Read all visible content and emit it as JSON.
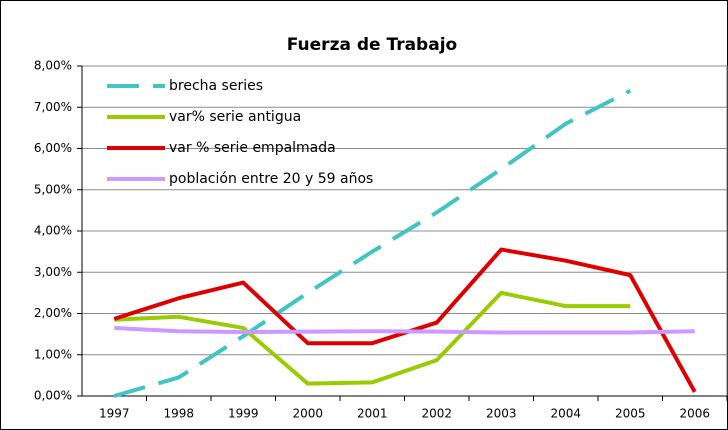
{
  "chart_data": {
    "type": "line",
    "title": "Fuerza de Trabajo",
    "categories": [
      "1997",
      "1998",
      "1999",
      "2000",
      "2001",
      "2002",
      "2003",
      "2004",
      "2005",
      "2006"
    ],
    "series": [
      {
        "name": "brecha series",
        "color": "#40c4c4",
        "dashed": true,
        "values": [
          0,
          0.45,
          1.45,
          2.5,
          3.5,
          4.45,
          5.5,
          6.6,
          7.4,
          null
        ]
      },
      {
        "name": "var% serie antigua",
        "color": "#99cc00",
        "values": [
          1.85,
          1.92,
          1.65,
          0.3,
          0.33,
          0.87,
          2.5,
          2.18,
          2.18,
          null
        ]
      },
      {
        "name": "var % serie empalmada",
        "color": "#dd0000",
        "values": [
          1.87,
          2.37,
          2.75,
          1.28,
          1.28,
          1.78,
          3.55,
          3.28,
          2.93,
          0.1
        ]
      },
      {
        "name": "población entre 20 y 59 años",
        "color": "#cc99ff",
        "values": [
          1.65,
          1.57,
          1.55,
          1.56,
          1.57,
          1.56,
          1.54,
          1.54,
          1.54,
          1.57
        ]
      }
    ],
    "ylim": [
      0,
      8
    ],
    "yticks": [
      {
        "value": 0,
        "label": "0,00%"
      },
      {
        "value": 1,
        "label": "1,00%"
      },
      {
        "value": 2,
        "label": "2,00%"
      },
      {
        "value": 3,
        "label": "3,00%"
      },
      {
        "value": 4,
        "label": "4,00%"
      },
      {
        "value": 5,
        "label": "5,00%"
      },
      {
        "value": 6,
        "label": "6,00%"
      },
      {
        "value": 7,
        "label": "7,00%"
      },
      {
        "value": 8,
        "label": "8,00%"
      }
    ],
    "grid": true,
    "legend": "top-left"
  }
}
